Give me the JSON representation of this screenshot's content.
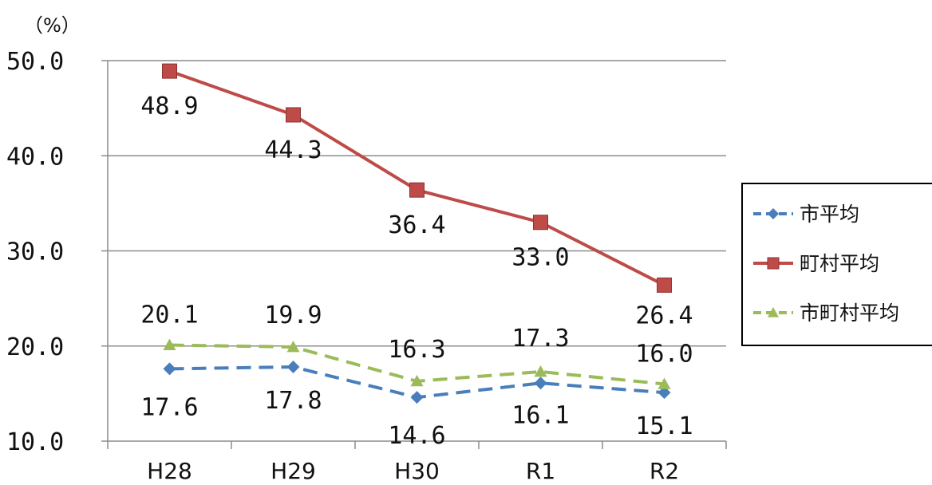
{
  "chart_data": {
    "type": "line",
    "unit_label": "（%）",
    "categories": [
      "H28",
      "H29",
      "H30",
      "R1",
      "R2"
    ],
    "ylim": [
      10.0,
      50.0
    ],
    "yticks": [
      "10.0",
      "20.0",
      "30.0",
      "40.0",
      "50.0"
    ],
    "grid": true,
    "legend_position": "right",
    "series": [
      {
        "name": "市平均",
        "values": [
          17.6,
          17.8,
          14.6,
          16.1,
          15.1
        ],
        "labels": [
          "17.6",
          "17.8",
          "14.6",
          "16.1",
          "15.1"
        ],
        "color": "#4a7ebb",
        "marker": "diamond",
        "line_style": "dashed"
      },
      {
        "name": "町村平均",
        "values": [
          48.9,
          44.3,
          36.4,
          33.0,
          26.4
        ],
        "labels": [
          "48.9",
          "44.3",
          "36.4",
          "33.0",
          "26.4"
        ],
        "color": "#be4b48",
        "marker": "square",
        "line_style": "solid"
      },
      {
        "name": "市町村平均",
        "values": [
          20.1,
          19.9,
          16.3,
          17.3,
          16.0
        ],
        "labels": [
          "20.1",
          "19.9",
          "16.3",
          "17.3",
          "16.0"
        ],
        "color": "#9bbb59",
        "marker": "triangle",
        "line_style": "dashed"
      }
    ]
  }
}
